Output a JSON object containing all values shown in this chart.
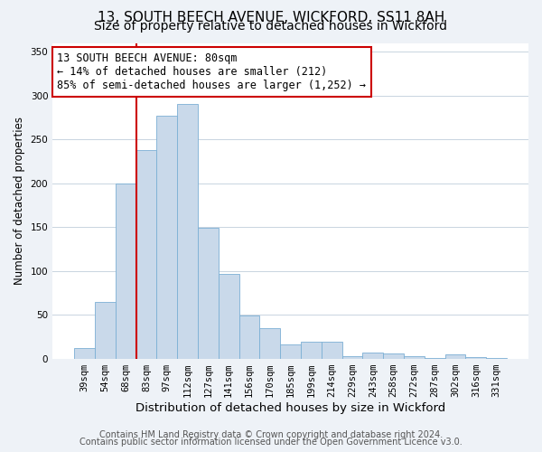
{
  "title": "13, SOUTH BEECH AVENUE, WICKFORD, SS11 8AH",
  "subtitle": "Size of property relative to detached houses in Wickford",
  "xlabel": "Distribution of detached houses by size in Wickford",
  "ylabel": "Number of detached properties",
  "bar_labels": [
    "39sqm",
    "54sqm",
    "68sqm",
    "83sqm",
    "97sqm",
    "112sqm",
    "127sqm",
    "141sqm",
    "156sqm",
    "170sqm",
    "185sqm",
    "199sqm",
    "214sqm",
    "229sqm",
    "243sqm",
    "258sqm",
    "272sqm",
    "287sqm",
    "302sqm",
    "316sqm",
    "331sqm"
  ],
  "bar_heights": [
    12,
    65,
    200,
    238,
    277,
    290,
    149,
    97,
    49,
    35,
    16,
    19,
    19,
    3,
    7,
    6,
    3,
    1,
    5,
    2,
    1
  ],
  "bar_color": "#c9d9ea",
  "bar_edge_color": "#7bafd4",
  "vline_x_index": 3,
  "vline_color": "#cc0000",
  "annotation_line1": "13 SOUTH BEECH AVENUE: 80sqm",
  "annotation_line2": "← 14% of detached houses are smaller (212)",
  "annotation_line3": "85% of semi-detached houses are larger (1,252) →",
  "annotation_box_edge": "#cc0000",
  "ylim": [
    0,
    360
  ],
  "yticks": [
    0,
    50,
    100,
    150,
    200,
    250,
    300,
    350
  ],
  "footer1": "Contains HM Land Registry data © Crown copyright and database right 2024.",
  "footer2": "Contains public sector information licensed under the Open Government Licence v3.0.",
  "background_color": "#eef2f7",
  "plot_bg_color": "#ffffff",
  "title_fontsize": 11,
  "subtitle_fontsize": 10,
  "xlabel_fontsize": 9.5,
  "ylabel_fontsize": 8.5,
  "tick_fontsize": 7.5,
  "annotation_fontsize": 8.5,
  "footer_fontsize": 7
}
